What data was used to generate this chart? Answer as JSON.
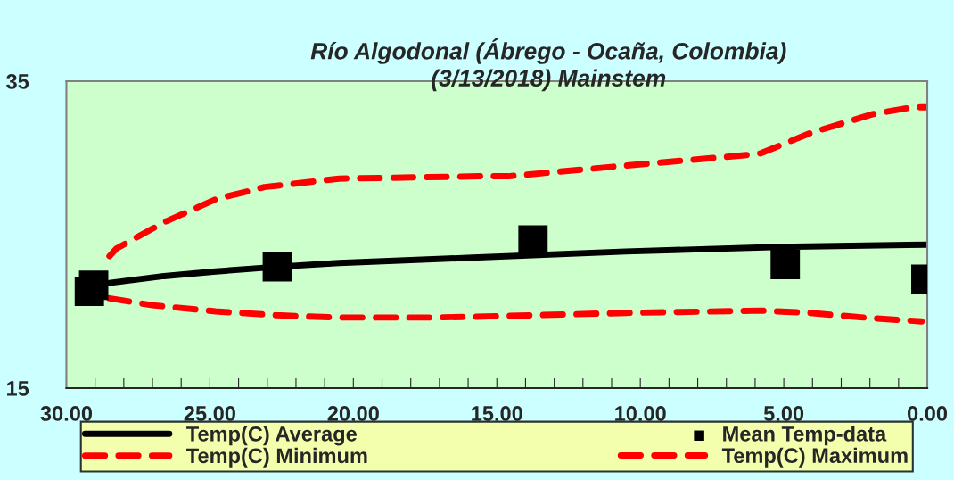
{
  "chart_data": {
    "type": "line",
    "title": "Río Algodonal (Ábrego - Ocaña, Colombia)\n(3/13/2018) Mainstem",
    "xlim": [
      30,
      0
    ],
    "ylim": [
      15,
      35
    ],
    "xticks": [
      {
        "value": 30,
        "label": "30.00"
      },
      {
        "value": 25,
        "label": "25.00"
      },
      {
        "value": 20,
        "label": "20.00"
      },
      {
        "value": 15,
        "label": "15.00"
      },
      {
        "value": 10,
        "label": "10.00"
      },
      {
        "value": 5,
        "label": "5.00"
      },
      {
        "value": 0,
        "label": "0.00"
      },
      {
        "value": 29,
        "label": null
      },
      {
        "value": 28,
        "label": null
      },
      {
        "value": 27,
        "label": null
      },
      {
        "value": 26,
        "label": null
      },
      {
        "value": 24,
        "label": null
      },
      {
        "value": 23,
        "label": null
      },
      {
        "value": 22,
        "label": null
      },
      {
        "value": 21,
        "label": null
      },
      {
        "value": 19,
        "label": null
      },
      {
        "value": 18,
        "label": null
      },
      {
        "value": 17,
        "label": null
      },
      {
        "value": 16,
        "label": null
      },
      {
        "value": 14,
        "label": null
      },
      {
        "value": 13,
        "label": null
      },
      {
        "value": 12,
        "label": null
      },
      {
        "value": 11,
        "label": null
      },
      {
        "value": 9,
        "label": null
      },
      {
        "value": 8,
        "label": null
      },
      {
        "value": 7,
        "label": null
      },
      {
        "value": 6,
        "label": null
      },
      {
        "value": 4,
        "label": null
      },
      {
        "value": 3,
        "label": null
      },
      {
        "value": 2,
        "label": null
      },
      {
        "value": 1,
        "label": null
      }
    ],
    "yticks": [
      15,
      35
    ],
    "grid": false,
    "legend": "bottom",
    "series": [
      {
        "name": "Temp(C) Average",
        "color": "#000000",
        "line_style": "solid",
        "marker": "none",
        "x": [
          28.5,
          26.6,
          24.8,
          22.7,
          20.5,
          15.85,
          10.5,
          5.15,
          0
        ],
        "values": [
          21.85,
          22.3,
          22.6,
          22.9,
          23.15,
          23.5,
          23.9,
          24.2,
          24.35
        ]
      },
      {
        "name": "Mean Temp-data",
        "type": "scatter",
        "color": "#000000",
        "marker": "square",
        "x": [
          29.2,
          29.05,
          22.65,
          13.74,
          4.95,
          0.05
        ],
        "values": [
          21.3,
          21.7,
          22.9,
          24.65,
          23.05,
          22.1
        ]
      },
      {
        "name": "Temp(C) Minimum",
        "color": "#ff0000",
        "line_style": "dashed",
        "marker": "none",
        "x": [
          28.5,
          27,
          24.8,
          22.7,
          20.5,
          17.3,
          15.85,
          10.5,
          5.8,
          4.1,
          1.9,
          0.2
        ],
        "values": [
          20.85,
          20.4,
          20.0,
          19.75,
          19.6,
          19.6,
          19.65,
          19.9,
          20.05,
          19.9,
          19.55,
          19.35
        ]
      },
      {
        "name": "Temp(C) Maximum",
        "color": "#ff0000",
        "line_style": "dashed",
        "marker": "none",
        "x": [
          28.5,
          28.25,
          26.6,
          24.8,
          23.1,
          20.5,
          15.6,
          14.6,
          10.5,
          6.2,
          5.8,
          4.1,
          1.9,
          0.5,
          0
        ],
        "values": [
          23.6,
          24.1,
          25.8,
          27.3,
          28.1,
          28.65,
          28.8,
          28.8,
          29.5,
          30.2,
          30.3,
          31.6,
          32.85,
          33.3,
          33.3
        ]
      }
    ]
  }
}
